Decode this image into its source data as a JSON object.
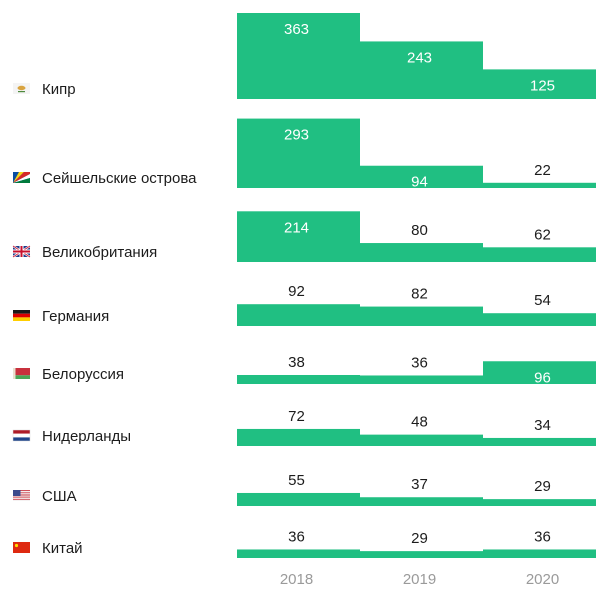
{
  "colors": {
    "bar": "#20bf82",
    "label_inside": "#ffffff",
    "label_outside": "#1c1c1c",
    "axis_text": "#9a9a9a"
  },
  "chart_data": {
    "type": "bar",
    "title": "",
    "xlabel": "",
    "ylabel": "",
    "years": [
      "2018",
      "2019",
      "2020"
    ],
    "rows": [
      {
        "country": "Кипр",
        "flag_icon": "cyprus-flag-icon",
        "values": [
          363,
          243,
          125
        ]
      },
      {
        "country": "Сейшельские острова",
        "flag_icon": "seychelles-flag-icon",
        "values": [
          293,
          94,
          22
        ]
      },
      {
        "country": "Великобритания",
        "flag_icon": "uk-flag-icon",
        "values": [
          214,
          80,
          62
        ]
      },
      {
        "country": "Германия",
        "flag_icon": "germany-flag-icon",
        "values": [
          92,
          82,
          54
        ]
      },
      {
        "country": "Белоруссия",
        "flag_icon": "belarus-flag-icon",
        "values": [
          38,
          36,
          96
        ]
      },
      {
        "country": "Нидерланды",
        "flag_icon": "netherlands-flag-icon",
        "values": [
          72,
          48,
          34
        ]
      },
      {
        "country": "США",
        "flag_icon": "usa-flag-icon",
        "values": [
          55,
          37,
          29
        ]
      },
      {
        "country": "Китай",
        "flag_icon": "china-flag-icon",
        "values": [
          36,
          29,
          36
        ]
      }
    ]
  }
}
